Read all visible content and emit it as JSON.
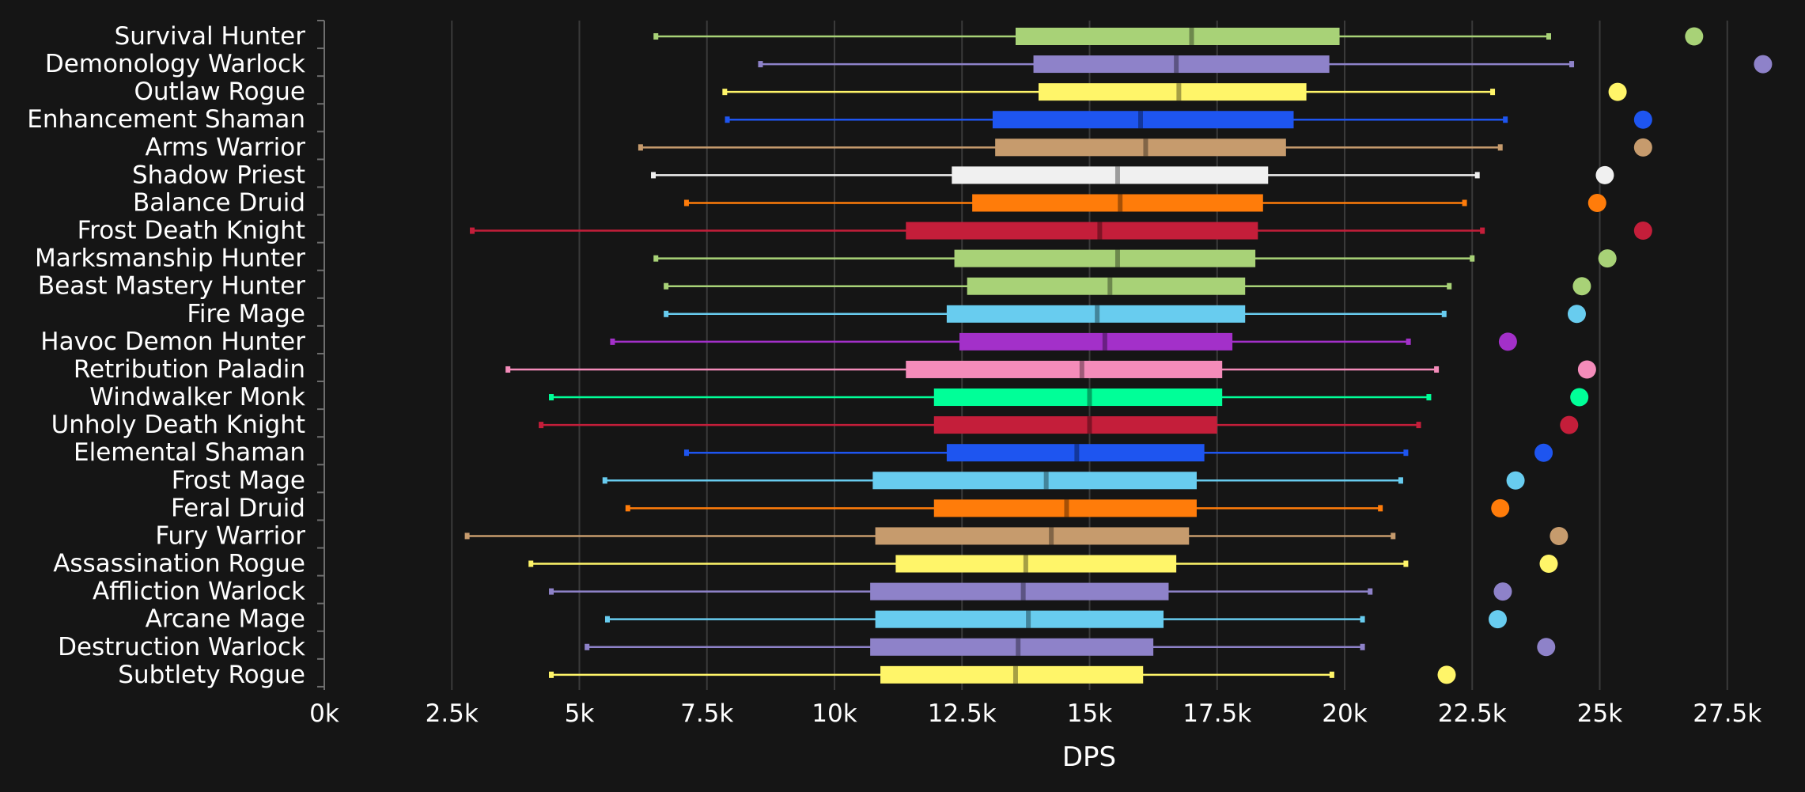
{
  "chart_data": {
    "type": "box",
    "orientation": "horizontal",
    "xlabel": "DPS",
    "xlim": [
      0,
      28500
    ],
    "x_ticks": [
      0,
      2500,
      5000,
      7500,
      10000,
      12500,
      15000,
      17500,
      20000,
      22500,
      25000,
      27500
    ],
    "x_tick_labels": [
      "0k",
      "2.5k",
      "5k",
      "7.5k",
      "10k",
      "12.5k",
      "15k",
      "17.5k",
      "20k",
      "22.5k",
      "25k",
      "27.5k"
    ],
    "grid": "vertical",
    "categories": [
      {
        "name": "Survival Hunter",
        "color": "#A8D277",
        "min": 6500,
        "q1": 13550,
        "median": 17000,
        "q3": 19900,
        "max": 24000,
        "outlier": 26850
      },
      {
        "name": "Demonology Warlock",
        "color": "#8E82C9",
        "min": 8550,
        "q1": 13900,
        "median": 16700,
        "q3": 19700,
        "max": 24450,
        "outlier": 28200
      },
      {
        "name": "Outlaw Rogue",
        "color": "#FFF569",
        "min": 7850,
        "q1": 14000,
        "median": 16750,
        "q3": 19250,
        "max": 22900,
        "outlier": 25350
      },
      {
        "name": "Enhancement Shaman",
        "color": "#1E55F0",
        "min": 7900,
        "q1": 13100,
        "median": 16000,
        "q3": 19000,
        "max": 23150,
        "outlier": 25850
      },
      {
        "name": "Arms Warrior",
        "color": "#C69B6D",
        "min": 6200,
        "q1": 13150,
        "median": 16100,
        "q3": 18850,
        "max": 23050,
        "outlier": 25850
      },
      {
        "name": "Shadow Priest",
        "color": "#F0F0F0",
        "min": 6450,
        "q1": 12300,
        "median": 15550,
        "q3": 18500,
        "max": 22600,
        "outlier": 25100
      },
      {
        "name": "Balance Druid",
        "color": "#FF7C0A",
        "min": 7100,
        "q1": 12700,
        "median": 15600,
        "q3": 18400,
        "max": 22350,
        "outlier": 24950
      },
      {
        "name": "Frost Death Knight",
        "color": "#C41E3A",
        "min": 2900,
        "q1": 11400,
        "median": 15200,
        "q3": 18300,
        "max": 22700,
        "outlier": 25850
      },
      {
        "name": "Marksmanship Hunter",
        "color": "#A8D277",
        "min": 6500,
        "q1": 12350,
        "median": 15550,
        "q3": 18250,
        "max": 22500,
        "outlier": 25150
      },
      {
        "name": "Beast Mastery Hunter",
        "color": "#A8D277",
        "min": 6700,
        "q1": 12600,
        "median": 15400,
        "q3": 18050,
        "max": 22050,
        "outlier": 24650
      },
      {
        "name": "Fire Mage",
        "color": "#68CCEF",
        "min": 6700,
        "q1": 12200,
        "median": 15150,
        "q3": 18050,
        "max": 21950,
        "outlier": 24550
      },
      {
        "name": "Havoc Demon Hunter",
        "color": "#A330C9",
        "min": 5650,
        "q1": 12450,
        "median": 15300,
        "q3": 17800,
        "max": 21250,
        "outlier": 23200
      },
      {
        "name": "Retribution Paladin",
        "color": "#F48CBA",
        "min": 3600,
        "q1": 11400,
        "median": 14850,
        "q3": 17600,
        "max": 21800,
        "outlier": 24750
      },
      {
        "name": "Windwalker Monk",
        "color": "#00FF98",
        "min": 4450,
        "q1": 11950,
        "median": 15000,
        "q3": 17600,
        "max": 21650,
        "outlier": 24600
      },
      {
        "name": "Unholy Death Knight",
        "color": "#C41E3A",
        "min": 4250,
        "q1": 11950,
        "median": 15000,
        "q3": 17500,
        "max": 21450,
        "outlier": 24400
      },
      {
        "name": "Elemental Shaman",
        "color": "#1E55F0",
        "min": 7100,
        "q1": 12200,
        "median": 14750,
        "q3": 17250,
        "max": 21200,
        "outlier": 23900
      },
      {
        "name": "Frost Mage",
        "color": "#68CCEF",
        "min": 5500,
        "q1": 10750,
        "median": 14150,
        "q3": 17100,
        "max": 21100,
        "outlier": 23350
      },
      {
        "name": "Feral Druid",
        "color": "#FF7C0A",
        "min": 5950,
        "q1": 11950,
        "median": 14550,
        "q3": 17100,
        "max": 20700,
        "outlier": 23050
      },
      {
        "name": "Fury Warrior",
        "color": "#C69B6D",
        "min": 2800,
        "q1": 10800,
        "median": 14250,
        "q3": 16950,
        "max": 20950,
        "outlier": 24200
      },
      {
        "name": "Assassination Rogue",
        "color": "#FFF569",
        "min": 4050,
        "q1": 11200,
        "median": 13750,
        "q3": 16700,
        "max": 21200,
        "outlier": 24000
      },
      {
        "name": "Affliction Warlock",
        "color": "#8E82C9",
        "min": 4450,
        "q1": 10700,
        "median": 13700,
        "q3": 16550,
        "max": 20500,
        "outlier": 23100
      },
      {
        "name": "Arcane Mage",
        "color": "#68CCEF",
        "min": 5550,
        "q1": 10800,
        "median": 13800,
        "q3": 16450,
        "max": 20350,
        "outlier": 23000
      },
      {
        "name": "Destruction Warlock",
        "color": "#8E82C9",
        "min": 5150,
        "q1": 10700,
        "median": 13600,
        "q3": 16250,
        "max": 20350,
        "outlier": 23950
      },
      {
        "name": "Subtlety Rogue",
        "color": "#FFF569",
        "min": 4450,
        "q1": 10900,
        "median": 13550,
        "q3": 16050,
        "max": 19750,
        "outlier": 22000
      }
    ]
  }
}
